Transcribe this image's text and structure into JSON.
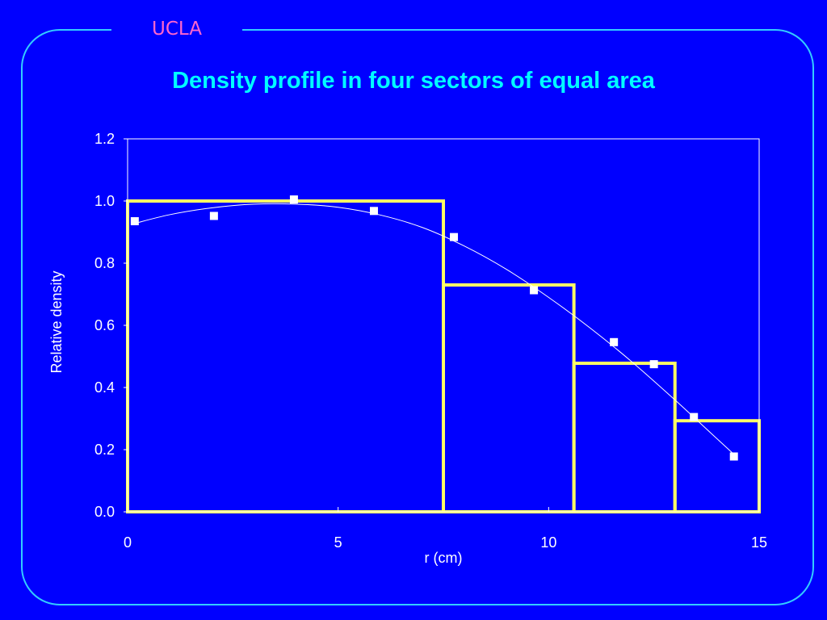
{
  "brand": "UCLA",
  "colors": {
    "background": "#0000ff",
    "frame": "#33ccff",
    "brand": "#ff66cc",
    "title": "#00ffff",
    "axes": "#ffffff",
    "steps": "#ffff66",
    "points": "#ffffff",
    "fit_line": "#ffffff"
  },
  "chart_data": {
    "type": "scatter",
    "title": "Density profile in four sectors of equal area",
    "xlabel": "r (cm)",
    "ylabel": "Relative density",
    "xlim": [
      0,
      15
    ],
    "ylim": [
      0,
      1.2
    ],
    "x_ticks": [
      "0",
      "5",
      "10",
      "15"
    ],
    "x_tick_values": [
      0,
      5,
      10,
      15
    ],
    "y_ticks": [
      "0.0",
      "0.2",
      "0.4",
      "0.6",
      "0.8",
      "1.0",
      "1.2"
    ],
    "y_tick_values": [
      0,
      0.2,
      0.4,
      0.6,
      0.8,
      1.0,
      1.2
    ],
    "grid": false,
    "legend": false,
    "points": {
      "x": [
        0.17,
        2.05,
        3.95,
        5.85,
        7.75,
        9.65,
        11.55,
        12.5,
        13.45,
        14.4
      ],
      "y": [
        0.935,
        0.952,
        1.005,
        0.968,
        0.884,
        0.713,
        0.546,
        0.475,
        0.305,
        0.178
      ]
    },
    "fit_curve": {
      "x": [
        0.17,
        1,
        2,
        3,
        4,
        5,
        6,
        7,
        8,
        9,
        10,
        11,
        12,
        13,
        14,
        14.4
      ],
      "y": [
        0.928,
        0.956,
        0.978,
        0.99,
        0.99,
        0.98,
        0.955,
        0.915,
        0.855,
        0.78,
        0.69,
        0.59,
        0.48,
        0.36,
        0.235,
        0.185
      ]
    },
    "sectors": [
      {
        "r_start": 0,
        "r_end": 7.5,
        "density": 1.0
      },
      {
        "r_start": 7.5,
        "r_end": 10.6,
        "density": 0.73
      },
      {
        "r_start": 10.6,
        "r_end": 13.0,
        "density": 0.478
      },
      {
        "r_start": 13.0,
        "r_end": 15.0,
        "density": 0.293
      }
    ]
  }
}
